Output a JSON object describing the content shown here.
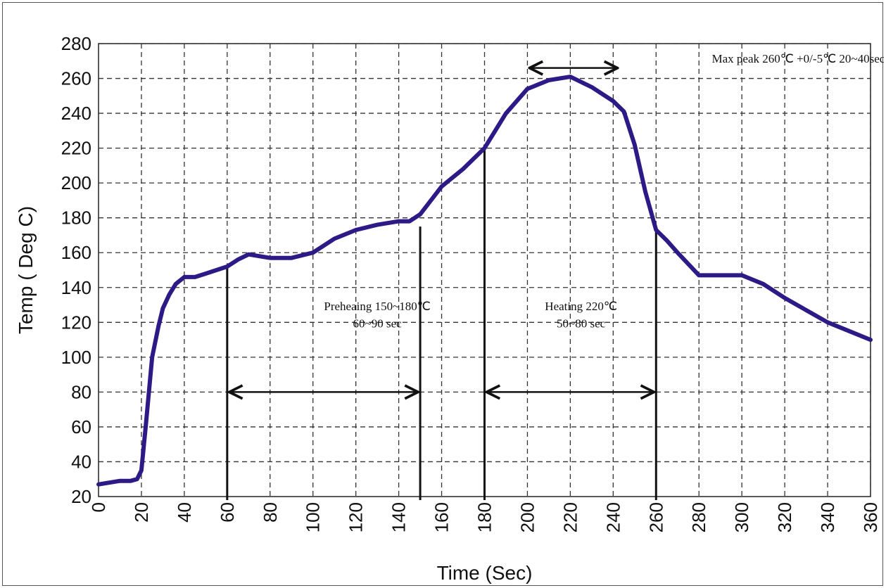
{
  "chart_data": {
    "type": "line",
    "title": "",
    "xlabel": "Time (Sec)",
    "ylabel": "Temp ( Deg C)",
    "xlim": [
      0,
      360
    ],
    "ylim": [
      20,
      280
    ],
    "xticks": [
      0,
      20,
      40,
      60,
      80,
      100,
      120,
      140,
      160,
      180,
      200,
      220,
      240,
      260,
      280,
      300,
      320,
      340,
      360
    ],
    "yticks": [
      20,
      40,
      60,
      80,
      100,
      120,
      140,
      160,
      180,
      200,
      220,
      240,
      260,
      280
    ],
    "grid": true,
    "line_color": "#2e1a87",
    "series": [
      {
        "x": [
          0,
          5,
          10,
          15,
          18,
          20,
          22,
          25,
          28,
          30,
          33,
          36,
          40,
          45,
          50,
          55,
          60,
          65,
          70,
          80,
          90,
          100,
          110,
          120,
          130,
          140,
          145,
          150,
          155,
          160,
          170,
          180,
          190,
          200,
          210,
          220,
          230,
          240,
          245,
          250,
          255,
          260,
          265,
          270,
          280,
          290,
          300,
          310,
          320,
          330,
          340,
          350,
          360
        ],
        "y": [
          27,
          28,
          29,
          29,
          30,
          35,
          60,
          100,
          118,
          128,
          136,
          142,
          146,
          146,
          148,
          150,
          152,
          156,
          159,
          157,
          157,
          160,
          168,
          173,
          176,
          178,
          178,
          182,
          190,
          198,
          208,
          220,
          240,
          254,
          259,
          261,
          255,
          247,
          241,
          222,
          195,
          173,
          167,
          160,
          147,
          147,
          147,
          142,
          134,
          127,
          120,
          115,
          110
        ]
      }
    ],
    "annotations": [
      {
        "text": "Preheaing 150~180℃",
        "x": 130,
        "y": 127
      },
      {
        "text": "60~90 sec",
        "x": 130,
        "y": 117
      },
      {
        "text": "Heating 220℃",
        "x": 225,
        "y": 127
      },
      {
        "text": "50~80 sec",
        "x": 225,
        "y": 117
      },
      {
        "text": "Max peak 260℃ +0/-5℃ 20~40sec",
        "x": 286,
        "y": 269
      }
    ],
    "vertical_markers": [
      {
        "x": 60,
        "y_top": 152
      },
      {
        "x": 150,
        "y_top": 175
      },
      {
        "x": 180,
        "y_top": 222
      },
      {
        "x": 260,
        "y_top": 174
      }
    ],
    "arrows": [
      {
        "x1": 60,
        "x2": 150,
        "y": 80
      },
      {
        "x1": 180,
        "x2": 260,
        "y": 80
      },
      {
        "x1": 200,
        "x2": 243,
        "y": 266
      }
    ]
  }
}
